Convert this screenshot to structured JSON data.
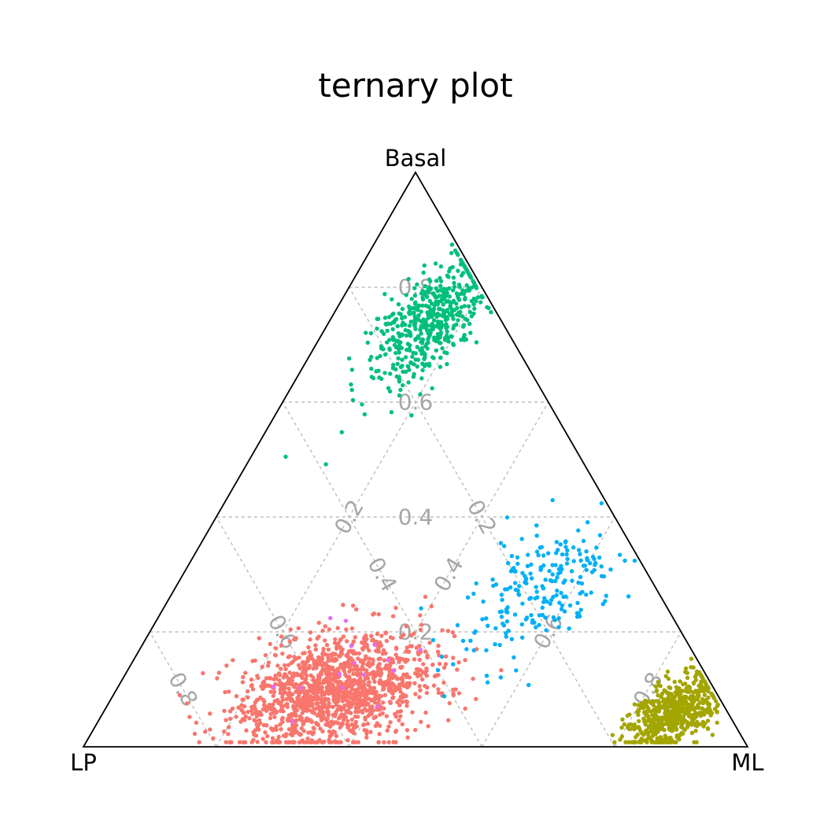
{
  "chart_data": {
    "type": "scatter",
    "subtype": "ternary",
    "title": "ternary plot",
    "axes": {
      "top": "Basal",
      "left": "LP",
      "right": "ML"
    },
    "grid": true,
    "grid_levels": [
      0.2,
      0.4,
      0.6,
      0.8
    ],
    "tick_labels": [
      "0.2",
      "0.4",
      "0.6",
      "0.8"
    ],
    "legend": "none",
    "series": [
      {
        "color": "#F8766D",
        "approx_count": 1400,
        "center": {
          "Basal": 0.1,
          "LP": 0.57,
          "ML": 0.33
        },
        "spread": {
          "Basal": 0.05,
          "ML": 0.07
        }
      },
      {
        "color": "#00BF7D",
        "approx_count": 500,
        "center": {
          "Basal": 0.74,
          "LP": 0.11,
          "ML": 0.15
        },
        "spread": {
          "Basal": 0.06,
          "ML": 0.035
        }
      },
      {
        "color": "#00B0F6",
        "approx_count": 220,
        "center": {
          "Basal": 0.27,
          "LP": 0.18,
          "ML": 0.55
        },
        "spread": {
          "Basal": 0.06,
          "ML": 0.05
        }
      },
      {
        "color": "#A3A500",
        "approx_count": 600,
        "center": {
          "Basal": 0.06,
          "LP": 0.08,
          "ML": 0.86
        },
        "spread": {
          "Basal": 0.03,
          "ML": 0.03
        }
      },
      {
        "color": "#E76BF3",
        "approx_count": 15,
        "center": {
          "Basal": 0.12,
          "LP": 0.57,
          "ML": 0.31
        },
        "spread": {
          "Basal": 0.05,
          "ML": 0.08
        }
      }
    ]
  }
}
